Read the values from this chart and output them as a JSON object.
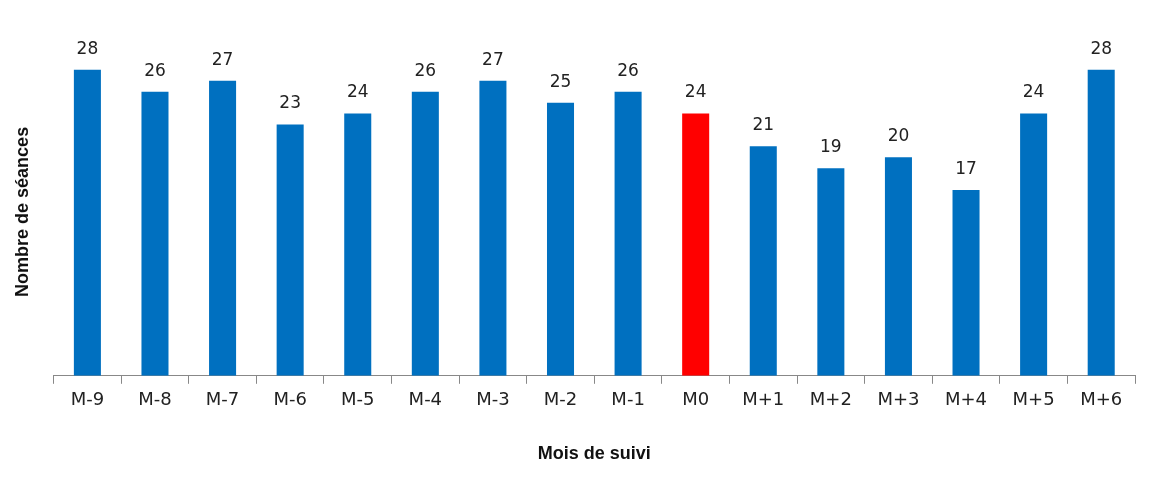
{
  "chart_data": {
    "type": "bar",
    "xlabel": "Mois de suivi",
    "ylabel": "Nombre de séances",
    "categories": [
      "M-9",
      "M-8",
      "M-7",
      "M-6",
      "M-5",
      "M-4",
      "M-3",
      "M-2",
      "M-1",
      "M0",
      "M+1",
      "M+2",
      "M+3",
      "M+4",
      "M+5",
      "M+6"
    ],
    "values": [
      28,
      26,
      27,
      23,
      24,
      26,
      27,
      25,
      26,
      24,
      21,
      19,
      20,
      17,
      24,
      28
    ],
    "colors": [
      "#0070c0",
      "#0070c0",
      "#0070c0",
      "#0070c0",
      "#0070c0",
      "#0070c0",
      "#0070c0",
      "#0070c0",
      "#0070c0",
      "#ff0000",
      "#0070c0",
      "#0070c0",
      "#0070c0",
      "#0070c0",
      "#0070c0",
      "#0070c0"
    ],
    "data_labels": true,
    "legend": false,
    "grid": false
  }
}
